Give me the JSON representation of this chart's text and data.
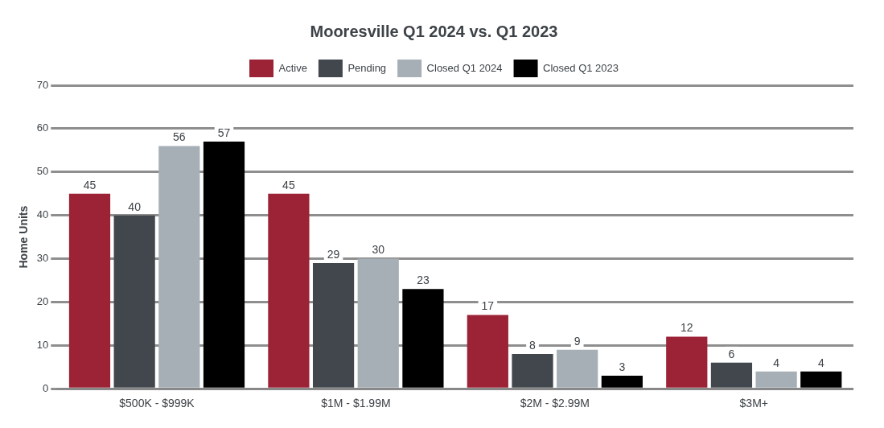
{
  "chart_data": {
    "type": "bar",
    "title": "Mooresville Q1 2024 vs. Q1 2023",
    "ylabel": "Home Units",
    "categories": [
      "$500K - $999K",
      "$1M - $1.99M",
      "$2M - $2.99M",
      "$3M+"
    ],
    "series": [
      {
        "name": "Active",
        "color": "#9b2335",
        "values": [
          45,
          45,
          17,
          12
        ]
      },
      {
        "name": "Pending",
        "color": "#41474d",
        "values": [
          40,
          29,
          8,
          6
        ]
      },
      {
        "name": "Closed Q1 2024",
        "color": "#a7afb6",
        "values": [
          56,
          30,
          9,
          4
        ]
      },
      {
        "name": "Closed Q1 2023",
        "color": "#000000",
        "values": [
          57,
          23,
          3,
          4
        ]
      }
    ],
    "ylim": [
      0,
      70
    ],
    "yticks": [
      0,
      10,
      20,
      30,
      40,
      50,
      60,
      70
    ],
    "grid": "y",
    "legend": "top",
    "data_labels": true
  }
}
